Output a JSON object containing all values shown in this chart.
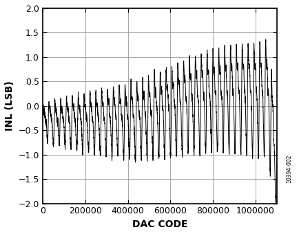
{
  "title": "",
  "xlabel": "DAC CODE",
  "ylabel": "INL (LSB)",
  "xlim": [
    0,
    1100000
  ],
  "ylim": [
    -2.0,
    2.0
  ],
  "xticks": [
    0,
    200000,
    400000,
    600000,
    800000,
    1000000
  ],
  "yticks": [
    -2.0,
    -1.5,
    -1.0,
    -0.5,
    0.0,
    0.5,
    1.0,
    1.5,
    2.0
  ],
  "watermark": "10394-002",
  "line_color": "#000000",
  "bg_color": "#ffffff",
  "grid_color": "#999999",
  "linewidth": 0.7,
  "n_points": 3000,
  "x_max": 1100000,
  "xlabel_fontsize": 10,
  "ylabel_fontsize": 10,
  "tick_fontsize": 9
}
